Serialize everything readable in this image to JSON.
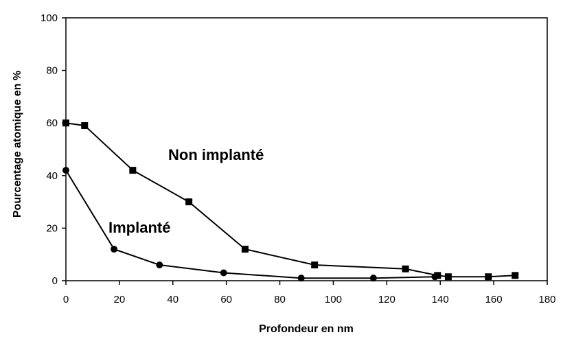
{
  "chart_data": {
    "type": "line",
    "title": "",
    "xlabel": "Profondeur en nm",
    "ylabel": "Pourcentage atomique en %",
    "xlim": [
      0,
      180
    ],
    "ylim": [
      0,
      100
    ],
    "xticks": [
      0,
      20,
      40,
      60,
      80,
      100,
      120,
      140,
      160,
      180
    ],
    "yticks": [
      0,
      20,
      40,
      60,
      80,
      100
    ],
    "grid": false,
    "legend": "none",
    "series": [
      {
        "name": "Non implanté",
        "marker": "square",
        "color": "#000000",
        "x": [
          0,
          7,
          25,
          46,
          67,
          93,
          127,
          139,
          143,
          158,
          168
        ],
        "y": [
          60,
          59,
          42,
          30,
          12,
          6,
          4.5,
          2,
          1.5,
          1.5,
          2
        ]
      },
      {
        "name": "Implanté",
        "marker": "circle",
        "color": "#000000",
        "x": [
          0,
          18,
          35,
          59,
          88,
          115,
          138
        ],
        "y": [
          42,
          12,
          6,
          3,
          1,
          1,
          1.5
        ]
      }
    ]
  }
}
